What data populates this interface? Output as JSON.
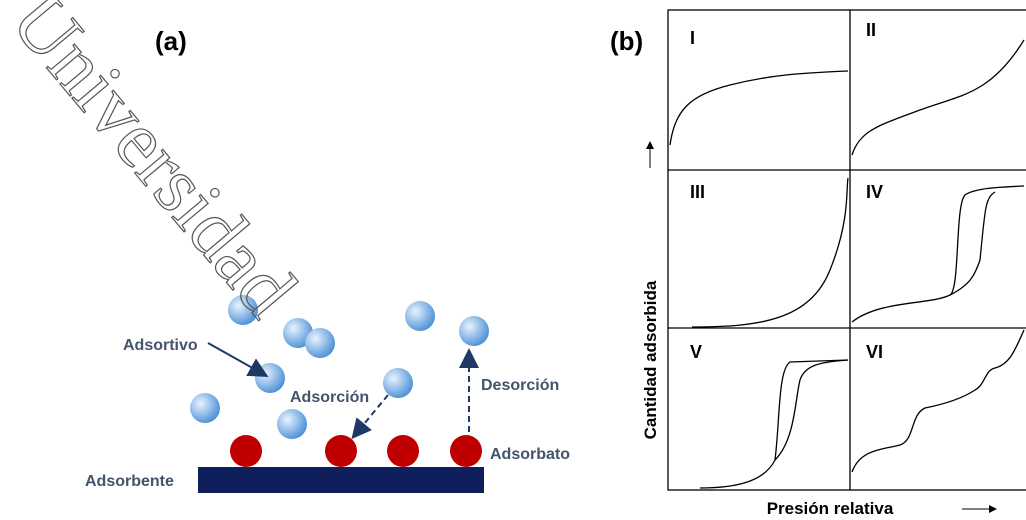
{
  "watermark": "Universidad",
  "panel_a": {
    "label": "(a)",
    "adsortivo": "Adsortivo",
    "adsorcion": "Adsorción",
    "desorcion": "Desorción",
    "adsorbato": "Adsorbato",
    "adsorbente": "Adsorbente"
  },
  "panel_b": {
    "label": "(b)",
    "types": [
      "I",
      "II",
      "III",
      "IV",
      "V",
      "VI"
    ],
    "y_label": "Cantidad adsorbida",
    "x_label": "Presión relativa"
  }
}
